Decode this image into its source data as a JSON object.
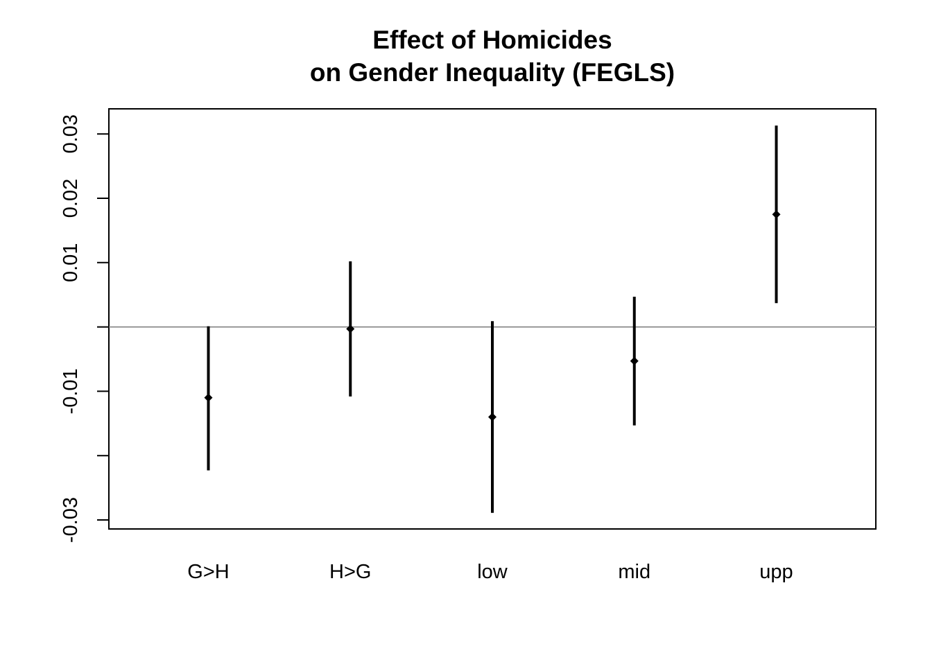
{
  "chart_data": {
    "type": "scatter",
    "title_line1": "Effect of Homicides",
    "title_line2": "on Gender Inequality (FEGLS)",
    "xlabel": "",
    "ylabel": "",
    "categories": [
      "G>H",
      "H>G",
      "low",
      "mid",
      "upp"
    ],
    "series": [
      {
        "estimates": [
          -0.011,
          -0.0003,
          -0.014,
          -0.0053,
          0.0175
        ],
        "lower": [
          -0.0223,
          -0.0108,
          -0.0289,
          -0.0153,
          0.0037
        ],
        "upper": [
          0.0001,
          0.0102,
          0.0009,
          0.0047,
          0.0313
        ]
      }
    ],
    "y_ticks": [
      -0.03,
      -0.02,
      -0.01,
      0,
      0.01,
      0.02,
      0.03
    ],
    "y_tick_labels": [
      "-0.03",
      "",
      "-0.01",
      "",
      "0.01",
      "0.02",
      "0.03"
    ],
    "ylim": [
      -0.0314,
      0.0339
    ],
    "reference_line": 0,
    "grid": false,
    "legend": "none"
  }
}
